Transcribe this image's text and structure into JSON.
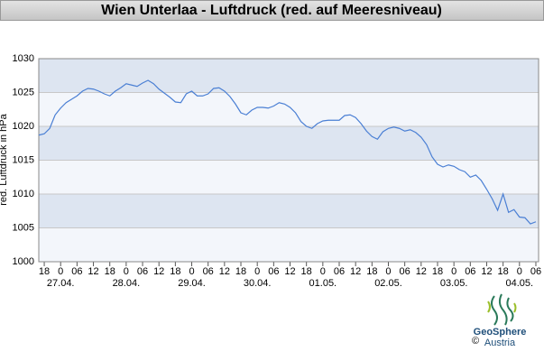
{
  "chart_data": {
    "type": "line",
    "title": "Wien Unterlaa - Luftdruck (red. auf Meeresniveau)",
    "y_label": "red. Luftdruck in hPa",
    "x": [
      -2,
      0,
      2,
      4,
      6,
      8,
      10,
      12,
      14,
      16,
      18,
      20,
      22,
      24,
      26,
      28,
      30,
      32,
      34,
      36,
      38,
      40,
      42,
      44,
      46,
      48,
      50,
      52,
      54,
      56,
      58,
      60,
      62,
      64,
      66,
      68,
      70,
      72,
      74,
      76,
      78,
      80,
      82,
      84,
      86,
      88,
      90,
      92,
      94,
      96,
      98,
      100,
      102,
      104,
      106,
      108,
      110,
      112,
      114,
      116,
      118,
      120,
      122,
      124,
      126,
      128,
      130,
      132,
      134,
      136,
      138,
      140,
      142,
      144,
      146,
      148,
      150,
      152,
      154,
      156,
      158,
      160,
      162,
      164,
      166,
      168,
      170,
      172,
      174,
      176,
      178,
      180
    ],
    "series": [
      {
        "color": "#4a7fd4",
        "values": [
          1018.7,
          1018.9,
          1019.7,
          1021.7,
          1022.7,
          1023.5,
          1024,
          1024.5,
          1025.2,
          1025.6,
          1025.5,
          1025.2,
          1024.8,
          1024.5,
          1025.2,
          1025.7,
          1026.3,
          1026.1,
          1025.9,
          1026.4,
          1026.8,
          1026.3,
          1025.5,
          1024.9,
          1024.3,
          1023.6,
          1023.5,
          1024.8,
          1025.2,
          1024.5,
          1024.5,
          1024.8,
          1025.6,
          1025.7,
          1025.2,
          1024.4,
          1023.3,
          1022,
          1021.7,
          1022.4,
          1022.8,
          1022.8,
          1022.7,
          1023,
          1023.5,
          1023.3,
          1022.8,
          1022,
          1020.7,
          1020,
          1019.7,
          1020.4,
          1020.8,
          1020.9,
          1020.9,
          1020.9,
          1021.6,
          1021.7,
          1021.3,
          1020.4,
          1019.3,
          1018.5,
          1018.1,
          1019.2,
          1019.7,
          1019.9,
          1019.7,
          1019.3,
          1019.5,
          1019.1,
          1018.4,
          1017.3,
          1015.5,
          1014.4,
          1014,
          1014.3,
          1014.1,
          1013.6,
          1013.3,
          1012.5,
          1012.8,
          1012,
          1010.7,
          1009.3,
          1007.6,
          1010,
          1007.3,
          1007.7,
          1006.6,
          1006.5,
          1005.6,
          1005.9
        ]
      }
    ],
    "xlim": [
      -2,
      181
    ],
    "xticks": [
      {
        "value": 0,
        "label": "18"
      },
      {
        "value": 6,
        "label": "0"
      },
      {
        "value": 12,
        "label": "06"
      },
      {
        "value": 18,
        "label": "12"
      },
      {
        "value": 24,
        "label": "18"
      },
      {
        "value": 30,
        "label": "0"
      },
      {
        "value": 36,
        "label": "06"
      },
      {
        "value": 42,
        "label": "12"
      },
      {
        "value": 48,
        "label": "18"
      },
      {
        "value": 54,
        "label": "0"
      },
      {
        "value": 60,
        "label": "06"
      },
      {
        "value": 66,
        "label": "12"
      },
      {
        "value": 72,
        "label": "18"
      },
      {
        "value": 78,
        "label": "0"
      },
      {
        "value": 84,
        "label": "06"
      },
      {
        "value": 90,
        "label": "12"
      },
      {
        "value": 96,
        "label": "18"
      },
      {
        "value": 102,
        "label": "0"
      },
      {
        "value": 108,
        "label": "06"
      },
      {
        "value": 114,
        "label": "12"
      },
      {
        "value": 120,
        "label": "18"
      },
      {
        "value": 126,
        "label": "0"
      },
      {
        "value": 132,
        "label": "06"
      },
      {
        "value": 138,
        "label": "12"
      },
      {
        "value": 144,
        "label": "18"
      },
      {
        "value": 150,
        "label": "0"
      },
      {
        "value": 156,
        "label": "06"
      },
      {
        "value": 162,
        "label": "12"
      },
      {
        "value": 168,
        "label": "18"
      },
      {
        "value": 174,
        "label": "0"
      },
      {
        "value": 180,
        "label": "06"
      }
    ],
    "date_ticks": [
      {
        "value": 6,
        "label": "27.04."
      },
      {
        "value": 30,
        "label": "28.04."
      },
      {
        "value": 54,
        "label": "29.04."
      },
      {
        "value": 78,
        "label": "30.04."
      },
      {
        "value": 102,
        "label": "01.05."
      },
      {
        "value": 126,
        "label": "02.05."
      },
      {
        "value": 150,
        "label": "03.05."
      },
      {
        "value": 174,
        "label": "04.05."
      }
    ],
    "ylim": [
      1000,
      1030
    ],
    "yticks": [
      1000,
      1005,
      1010,
      1015,
      1020,
      1025,
      1030
    ],
    "grid": true
  },
  "branding": {
    "copyright": "©",
    "name": "GeoSphere",
    "country": "Austria"
  }
}
